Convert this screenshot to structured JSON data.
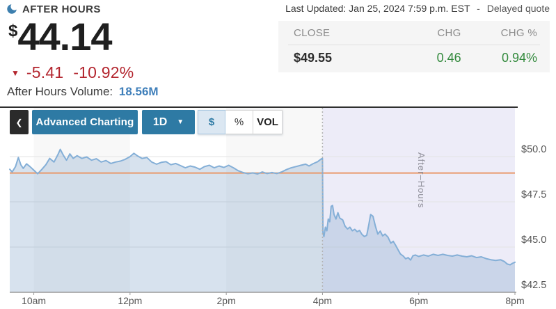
{
  "header": {
    "session_label": "AFTER HOURS",
    "currency_symbol": "$",
    "price": "44.14",
    "down_arrow": "▼",
    "change": "-5.41",
    "change_pct": "-10.92%",
    "volume_label": "After Hours Volume:",
    "volume_value": "18.56M",
    "last_updated": "Last Updated: Jan 25, 2024 7:59 p.m. EST",
    "separator": "-",
    "delayed_note": "Delayed quote"
  },
  "close_table": {
    "columns": [
      "CLOSE",
      "CHG",
      "CHG %"
    ],
    "values": [
      "$49.55",
      "0.46",
      "0.94%"
    ]
  },
  "toolbar": {
    "back_icon": "❮",
    "advanced_charting_label": "Advanced Charting",
    "range_label": "1D",
    "range_caret": "▼",
    "unit_toggle": [
      {
        "label": "$",
        "selected": true
      },
      {
        "label": "%",
        "selected": false
      },
      {
        "label": "VOL",
        "selected": false
      }
    ]
  },
  "colors": {
    "accent_blue": "#2e7aa4",
    "line_blue": "#84afd7",
    "fill_blue": "rgba(124,158,199,0.3)",
    "after_hours_bg": "#edecf8",
    "stripe_gray": "#f8f8f8",
    "gridline_gray": "#e3e3e3",
    "axis_gray": "#9a9a9a",
    "tick_text": "#555555",
    "reference_orange": "#e8996b",
    "divider_dotted": "#b3b3b3",
    "after_hours_label_gray": "#90909a",
    "top_border": "#2f2f2f",
    "positive_green": "#338a3d",
    "negative_red": "#b3252e",
    "link_blue": "#3f7fba",
    "moon_blue": "#3d7fae"
  },
  "chart_data": {
    "type": "area",
    "title": "",
    "xlabel": "",
    "ylabel": "",
    "x_ticks": [
      "10am",
      "12pm",
      "2pm",
      "4pm",
      "6pm",
      "8pm"
    ],
    "x_tick_hours": [
      10,
      12,
      14,
      16,
      18,
      20
    ],
    "y_ticks": [
      "$50.0",
      "$47.5",
      "$45.0",
      "$42.5"
    ],
    "y_tick_values": [
      50.0,
      47.5,
      45.0,
      42.5
    ],
    "xlim_hours": [
      9.5,
      20
    ],
    "ylim": [
      42.5,
      52.7
    ],
    "grid": true,
    "legend": false,
    "session_stripes_hours": [
      [
        10,
        12
      ],
      [
        14,
        16
      ]
    ],
    "after_hours_start_hour": 16,
    "after_hours_label": "After–Hours",
    "reference_line": {
      "value": 49.09
    },
    "series": [
      {
        "name": "price",
        "points": [
          [
            9.5,
            49.3
          ],
          [
            9.55,
            49.15
          ],
          [
            9.62,
            49.45
          ],
          [
            9.68,
            49.95
          ],
          [
            9.73,
            49.55
          ],
          [
            9.78,
            49.35
          ],
          [
            9.85,
            49.6
          ],
          [
            9.92,
            49.45
          ],
          [
            10.0,
            49.25
          ],
          [
            10.08,
            49.05
          ],
          [
            10.17,
            49.3
          ],
          [
            10.25,
            49.55
          ],
          [
            10.33,
            49.9
          ],
          [
            10.42,
            49.7
          ],
          [
            10.5,
            50.1
          ],
          [
            10.55,
            50.4
          ],
          [
            10.62,
            50.05
          ],
          [
            10.68,
            49.8
          ],
          [
            10.75,
            50.15
          ],
          [
            10.82,
            49.9
          ],
          [
            10.9,
            50.05
          ],
          [
            11.0,
            49.9
          ],
          [
            11.1,
            49.98
          ],
          [
            11.2,
            49.8
          ],
          [
            11.3,
            49.88
          ],
          [
            11.4,
            49.7
          ],
          [
            11.5,
            49.78
          ],
          [
            11.6,
            49.62
          ],
          [
            11.7,
            49.7
          ],
          [
            11.8,
            49.75
          ],
          [
            11.9,
            49.85
          ],
          [
            12.0,
            50.0
          ],
          [
            12.08,
            50.18
          ],
          [
            12.15,
            50.05
          ],
          [
            12.25,
            49.9
          ],
          [
            12.35,
            49.95
          ],
          [
            12.45,
            49.7
          ],
          [
            12.55,
            49.58
          ],
          [
            12.65,
            49.68
          ],
          [
            12.75,
            49.72
          ],
          [
            12.85,
            49.55
          ],
          [
            12.95,
            49.62
          ],
          [
            13.05,
            49.5
          ],
          [
            13.15,
            49.38
          ],
          [
            13.25,
            49.48
          ],
          [
            13.35,
            49.42
          ],
          [
            13.45,
            49.3
          ],
          [
            13.55,
            49.45
          ],
          [
            13.65,
            49.52
          ],
          [
            13.75,
            49.38
          ],
          [
            13.85,
            49.48
          ],
          [
            13.95,
            49.4
          ],
          [
            14.05,
            49.52
          ],
          [
            14.15,
            49.38
          ],
          [
            14.25,
            49.22
          ],
          [
            14.35,
            49.12
          ],
          [
            14.45,
            49.05
          ],
          [
            14.55,
            49.1
          ],
          [
            14.65,
            49.04
          ],
          [
            14.75,
            49.15
          ],
          [
            14.85,
            49.06
          ],
          [
            14.95,
            49.12
          ],
          [
            15.05,
            49.06
          ],
          [
            15.15,
            49.15
          ],
          [
            15.25,
            49.28
          ],
          [
            15.35,
            49.38
          ],
          [
            15.45,
            49.45
          ],
          [
            15.55,
            49.52
          ],
          [
            15.65,
            49.58
          ],
          [
            15.72,
            49.48
          ],
          [
            15.8,
            49.6
          ],
          [
            15.9,
            49.72
          ],
          [
            15.98,
            49.88
          ],
          [
            16.0,
            49.9
          ],
          [
            16.01,
            45.8
          ],
          [
            16.03,
            45.58
          ],
          [
            16.06,
            46.1
          ],
          [
            16.09,
            45.9
          ],
          [
            16.12,
            46.55
          ],
          [
            16.15,
            46.4
          ],
          [
            16.18,
            47.25
          ],
          [
            16.21,
            47.3
          ],
          [
            16.24,
            46.8
          ],
          [
            16.28,
            46.55
          ],
          [
            16.32,
            46.9
          ],
          [
            16.36,
            46.6
          ],
          [
            16.42,
            46.5
          ],
          [
            16.47,
            46.15
          ],
          [
            16.52,
            46.0
          ],
          [
            16.57,
            46.1
          ],
          [
            16.62,
            45.9
          ],
          [
            16.67,
            45.98
          ],
          [
            16.72,
            45.85
          ],
          [
            16.77,
            45.92
          ],
          [
            16.82,
            45.7
          ],
          [
            16.87,
            45.58
          ],
          [
            16.92,
            45.65
          ],
          [
            16.96,
            46.2
          ],
          [
            17.0,
            46.8
          ],
          [
            17.05,
            46.7
          ],
          [
            17.1,
            46.15
          ],
          [
            17.15,
            45.72
          ],
          [
            17.2,
            45.88
          ],
          [
            17.25,
            45.62
          ],
          [
            17.3,
            45.72
          ],
          [
            17.36,
            45.55
          ],
          [
            17.42,
            45.22
          ],
          [
            17.47,
            45.32
          ],
          [
            17.52,
            45.1
          ],
          [
            17.57,
            44.85
          ],
          [
            17.62,
            44.62
          ],
          [
            17.68,
            44.5
          ],
          [
            17.73,
            44.35
          ],
          [
            17.78,
            44.42
          ],
          [
            17.83,
            44.28
          ],
          [
            17.88,
            44.52
          ],
          [
            17.93,
            44.56
          ],
          [
            18.0,
            44.48
          ],
          [
            18.1,
            44.56
          ],
          [
            18.2,
            44.5
          ],
          [
            18.3,
            44.6
          ],
          [
            18.4,
            44.54
          ],
          [
            18.5,
            44.6
          ],
          [
            18.6,
            44.54
          ],
          [
            18.7,
            44.5
          ],
          [
            18.8,
            44.56
          ],
          [
            18.9,
            44.5
          ],
          [
            19.0,
            44.46
          ],
          [
            19.1,
            44.52
          ],
          [
            19.2,
            44.42
          ],
          [
            19.3,
            44.46
          ],
          [
            19.4,
            44.36
          ],
          [
            19.5,
            44.3
          ],
          [
            19.6,
            44.26
          ],
          [
            19.7,
            44.3
          ],
          [
            19.78,
            44.2
          ],
          [
            19.84,
            44.06
          ],
          [
            19.9,
            44.02
          ],
          [
            19.95,
            44.1
          ],
          [
            20.0,
            44.16
          ]
        ]
      }
    ]
  }
}
